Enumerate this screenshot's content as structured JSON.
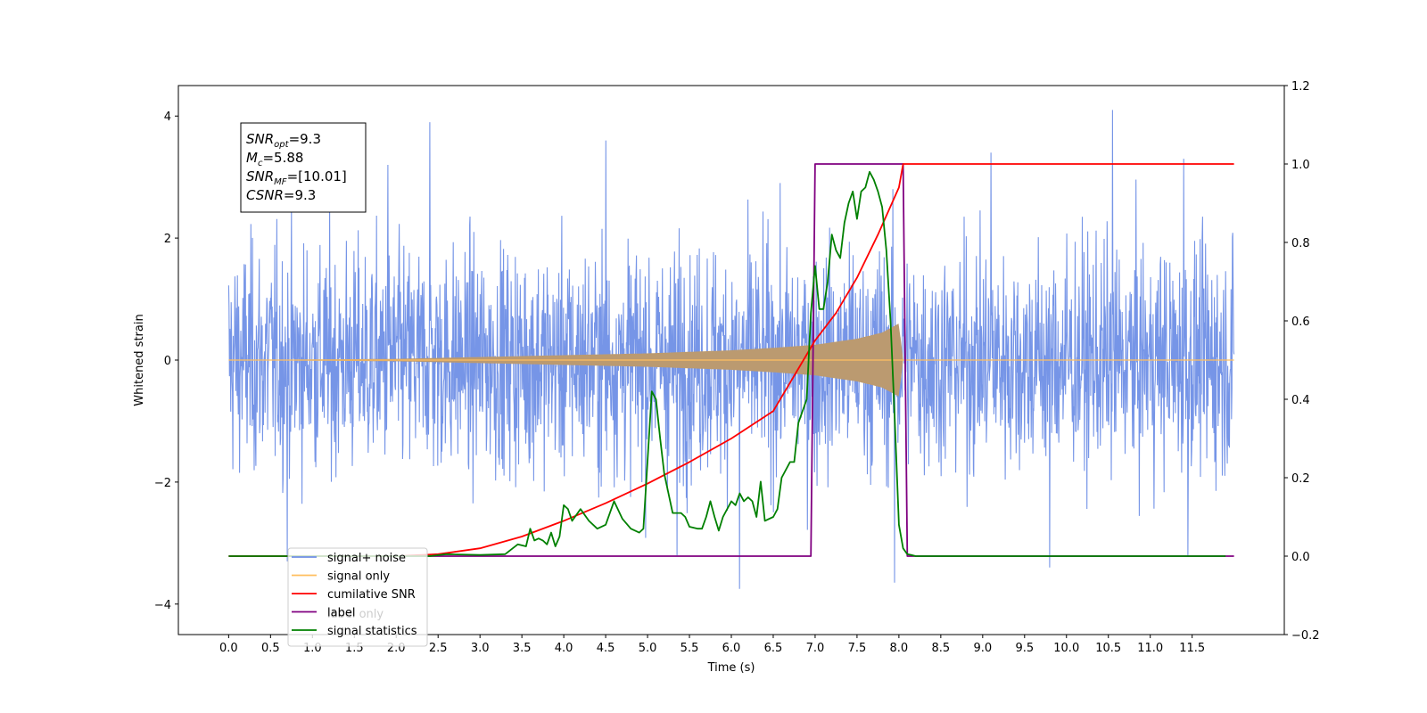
{
  "chart_data": {
    "type": "line",
    "xlabel": "Time (s)",
    "ylabel_left": "Whitened strain",
    "ylabel_right": "",
    "xlim": [
      -0.6,
      12.6
    ],
    "ylim_left": [
      -4.5,
      4.5
    ],
    "ylim_right": [
      -0.2,
      1.2
    ],
    "x_ticks": [
      "0.0",
      "0.5",
      "1.0",
      "1.5",
      "2.0",
      "2.5",
      "3.0",
      "3.5",
      "4.0",
      "4.5",
      "5.0",
      "5.5",
      "6.0",
      "6.5",
      "7.0",
      "7.5",
      "8.0",
      "8.5",
      "9.0",
      "9.5",
      "10.0",
      "10.5",
      "11.0",
      "11.5"
    ],
    "y_left_ticks": [
      4,
      2,
      0,
      -2,
      -4
    ],
    "y_left_tick_labels": [
      "4",
      "2",
      "0",
      "−2",
      "−4"
    ],
    "y_right_ticks": [
      1.2,
      1.0,
      0.8,
      0.6,
      0.4,
      0.2,
      0.0,
      -0.2
    ],
    "y_right_tick_labels": [
      "1.2",
      "1.0",
      "0.8",
      "0.6",
      "0.4",
      "0.2",
      "0.0",
      "−0.2"
    ],
    "grid": false,
    "legend_position": "lower-left",
    "info_box": {
      "lines": [
        {
          "base": "SNR",
          "sub": "opt",
          "value": "=9.3"
        },
        {
          "base": "M",
          "sub": "c",
          "value": "=5.88"
        },
        {
          "base": "SNR",
          "sub": "MF",
          "value": "=[10.01]"
        },
        {
          "base": "CSNR",
          "sub": "",
          "value": "=9.3"
        }
      ]
    },
    "noise": {
      "x_range": [
        0.0,
        12.0
      ],
      "envelope_typical": 1.6,
      "spikes": [
        {
          "x": 2.4,
          "y": 3.9
        },
        {
          "x": 4.5,
          "y": 3.6
        },
        {
          "x": 10.55,
          "y": 4.1
        },
        {
          "x": 9.1,
          "y": 3.4
        },
        {
          "x": 6.1,
          "y": -3.75
        },
        {
          "x": 7.95,
          "y": -3.65
        },
        {
          "x": 9.8,
          "y": -3.4
        },
        {
          "x": 11.4,
          "y": 3.3
        },
        {
          "x": 11.45,
          "y": -3.2
        },
        {
          "x": 0.7,
          "y": -3.3
        },
        {
          "x": 5.35,
          "y": -3.2
        },
        {
          "x": 1.9,
          "y": 3.2
        }
      ]
    },
    "signal_envelope": {
      "x": [
        0.0,
        2.0,
        3.0,
        4.0,
        5.0,
        6.0,
        6.5,
        7.0,
        7.5,
        7.8,
        8.0,
        8.05
      ],
      "amplitude": [
        0.0,
        0.02,
        0.05,
        0.08,
        0.11,
        0.16,
        0.2,
        0.25,
        0.35,
        0.45,
        0.6,
        0.0
      ]
    },
    "series": [
      {
        "name": "signal+ noise",
        "color": "#6f8fe6",
        "axis": "left"
      },
      {
        "name": "signal only",
        "color": "#ffbf5f",
        "axis": "left"
      },
      {
        "name": "cumilative SNR",
        "color": "#ff0000",
        "axis": "right",
        "x": [
          0.0,
          2.0,
          2.5,
          3.0,
          3.5,
          4.0,
          4.5,
          5.0,
          5.5,
          6.0,
          6.5,
          7.0,
          7.25,
          7.5,
          7.75,
          8.0,
          8.05,
          12.0
        ],
        "y": [
          0.0,
          0.0,
          0.005,
          0.02,
          0.05,
          0.09,
          0.135,
          0.185,
          0.24,
          0.3,
          0.37,
          0.55,
          0.62,
          0.71,
          0.82,
          0.94,
          1.0,
          1.0
        ]
      },
      {
        "name": "label",
        "color": "#800080",
        "axis": "right",
        "x": [
          0.0,
          6.95,
          7.0,
          8.05,
          8.1,
          12.0
        ],
        "y": [
          0.0,
          0.0,
          1.0,
          1.0,
          0.0,
          0.0
        ]
      },
      {
        "name": "signal statistics",
        "color": "#008000",
        "axis": "right",
        "x": [
          0.0,
          2.4,
          2.6,
          3.0,
          3.3,
          3.45,
          3.55,
          3.6,
          3.65,
          3.7,
          3.75,
          3.8,
          3.85,
          3.9,
          3.95,
          4.0,
          4.05,
          4.1,
          4.2,
          4.3,
          4.4,
          4.5,
          4.6,
          4.7,
          4.8,
          4.9,
          4.95,
          5.05,
          5.1,
          5.15,
          5.2,
          5.3,
          5.4,
          5.45,
          5.5,
          5.6,
          5.65,
          5.7,
          5.75,
          5.8,
          5.85,
          5.9,
          6.0,
          6.05,
          6.1,
          6.15,
          6.2,
          6.25,
          6.3,
          6.35,
          6.4,
          6.5,
          6.55,
          6.6,
          6.7,
          6.75,
          6.8,
          6.9,
          6.95,
          7.0,
          7.05,
          7.1,
          7.15,
          7.2,
          7.25,
          7.3,
          7.35,
          7.4,
          7.45,
          7.5,
          7.55,
          7.6,
          7.65,
          7.7,
          7.75,
          7.8,
          7.85,
          7.9,
          7.95,
          8.0,
          8.05,
          8.1,
          8.15,
          8.2,
          8.3,
          8.4,
          8.5,
          11.9
        ],
        "y": [
          0.0,
          0.0,
          0.005,
          0.003,
          0.005,
          0.03,
          0.025,
          0.07,
          0.04,
          0.045,
          0.04,
          0.03,
          0.06,
          0.025,
          0.05,
          0.13,
          0.12,
          0.09,
          0.12,
          0.09,
          0.07,
          0.08,
          0.14,
          0.095,
          0.07,
          0.06,
          0.07,
          0.42,
          0.4,
          0.3,
          0.21,
          0.11,
          0.11,
          0.1,
          0.075,
          0.07,
          0.07,
          0.1,
          0.14,
          0.1,
          0.065,
          0.1,
          0.14,
          0.13,
          0.16,
          0.14,
          0.15,
          0.14,
          0.1,
          0.19,
          0.09,
          0.1,
          0.12,
          0.2,
          0.24,
          0.24,
          0.34,
          0.4,
          0.62,
          0.74,
          0.63,
          0.63,
          0.7,
          0.82,
          0.78,
          0.76,
          0.85,
          0.9,
          0.93,
          0.86,
          0.93,
          0.94,
          0.98,
          0.96,
          0.93,
          0.89,
          0.78,
          0.6,
          0.35,
          0.08,
          0.02,
          0.005,
          0.003,
          0.0,
          0.0,
          0.0,
          0.0,
          0.0
        ]
      }
    ],
    "legend": [
      {
        "label": "signal+ noise",
        "color": "#6f8fe6"
      },
      {
        "label": "signal only",
        "color": "#ffbf5f"
      },
      {
        "label": "cumilative SNR",
        "color": "#ff0000"
      },
      {
        "label": "label",
        "color": "#800080"
      },
      {
        "label": "signal statistics",
        "color": "#008000"
      }
    ],
    "hidden_legend_text": "label only"
  }
}
